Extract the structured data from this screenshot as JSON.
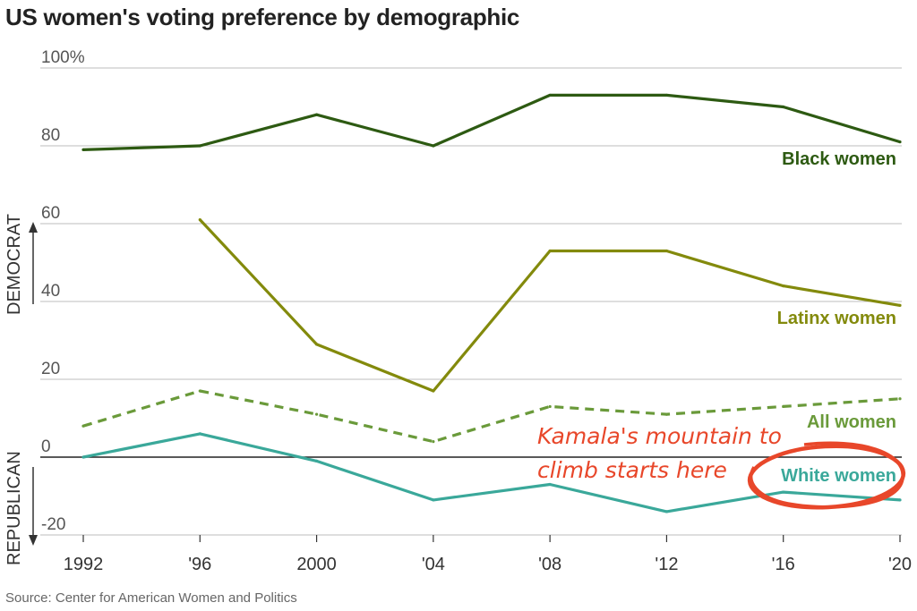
{
  "title": "US women's voting preference by demographic",
  "source": "Source: Center for American Women and Politics",
  "direction_labels": {
    "up": "DEMOCRAT",
    "down": "REPUBLICAN"
  },
  "annotation": {
    "lines": [
      "Kamala's mountain to",
      "climb starts here"
    ],
    "color": "#e8472a"
  },
  "chart_data": {
    "type": "line",
    "x": [
      1992,
      1996,
      2000,
      2004,
      2008,
      2012,
      2016,
      2020
    ],
    "x_tick_labels": [
      "1992",
      "'96",
      "2000",
      "'04",
      "'08",
      "'12",
      "'16",
      "'20"
    ],
    "y_ticks": [
      100,
      80,
      60,
      40,
      20,
      0,
      -20
    ],
    "y_tick_labels": [
      "100%",
      "80",
      "60",
      "40",
      "20",
      "0",
      "-20"
    ],
    "ylim": [
      -20,
      100
    ],
    "grid": true,
    "series": [
      {
        "name": "Black women",
        "color": "#2d5a12",
        "style": "solid",
        "x": [
          1992,
          1996,
          2000,
          2004,
          2008,
          2012,
          2016,
          2020
        ],
        "values": [
          79,
          80,
          88,
          80,
          93,
          93,
          90,
          81
        ]
      },
      {
        "name": "Latinx women",
        "color": "#838a0c",
        "style": "solid",
        "x": [
          1996,
          2000,
          2004,
          2008,
          2012,
          2016,
          2020
        ],
        "values": [
          61,
          29,
          17,
          53,
          53,
          44,
          39
        ]
      },
      {
        "name": "All women",
        "color": "#6a9a3a",
        "style": "dashed",
        "x": [
          1992,
          1996,
          2000,
          2004,
          2008,
          2012,
          2016,
          2020
        ],
        "values": [
          8,
          17,
          11,
          4,
          13,
          11,
          13,
          15
        ]
      },
      {
        "name": "White women",
        "color": "#3aa89a",
        "style": "solid",
        "x": [
          1992,
          1996,
          2000,
          2004,
          2008,
          2012,
          2016,
          2020
        ],
        "values": [
          0,
          6,
          -1,
          -11,
          -7,
          -14,
          -9,
          -11
        ]
      }
    ],
    "highlight": {
      "series": "White women",
      "style": "circle",
      "color": "#e8472a"
    }
  }
}
